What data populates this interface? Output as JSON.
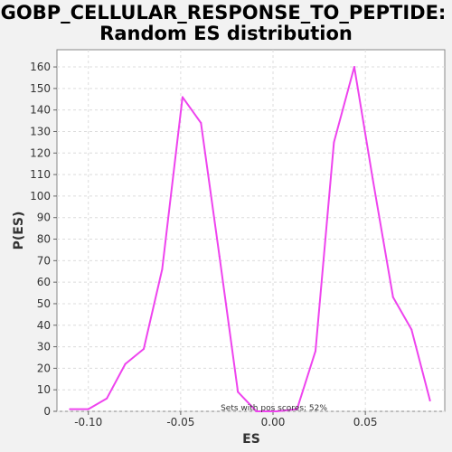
{
  "chart_data": {
    "type": "line",
    "title_line1": "GOBP_CELLULAR_RESPONSE_TO_PEPTIDE:",
    "title_line2": "Random ES distribution",
    "xlabel": "ES",
    "ylabel": "P(ES)",
    "annotation": "Sets with pos scores: 52%",
    "xlim": [
      -0.117,
      0.093
    ],
    "ylim": [
      0,
      168
    ],
    "x_ticks": [
      -0.1,
      -0.05,
      0.0,
      0.05
    ],
    "x_tick_labels": [
      "-0.10",
      "-0.05",
      "0.00",
      "0.05"
    ],
    "y_ticks": [
      0,
      10,
      20,
      30,
      40,
      50,
      60,
      70,
      80,
      90,
      100,
      110,
      120,
      130,
      140,
      150,
      160
    ],
    "grid": true,
    "line_color": "#ee44ee",
    "series": [
      {
        "x": [
          -0.11,
          -0.1,
          -0.09,
          -0.08,
          -0.07,
          -0.06,
          -0.049,
          -0.039,
          -0.029,
          -0.019,
          -0.009,
          0.002,
          0.013,
          0.023,
          0.033,
          0.044,
          0.054,
          0.065,
          0.075,
          0.085
        ],
        "y": [
          1,
          1,
          6,
          22,
          29,
          66,
          146,
          134,
          72,
          9,
          0,
          0,
          1,
          28,
          125,
          160,
          108,
          53,
          38,
          5
        ]
      }
    ]
  }
}
